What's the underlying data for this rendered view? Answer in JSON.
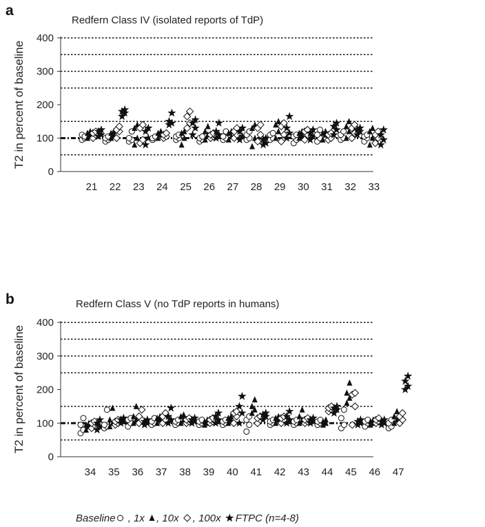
{
  "chart_data": [
    {
      "type": "scatter",
      "panel_label": "a",
      "title": "Redfern Class IV (isolated reports of  TdP)",
      "ylabel": "T2 in percent of baseline",
      "xlabel": "",
      "ylim": [
        0,
        400
      ],
      "yticks": [
        0,
        100,
        200,
        300,
        400
      ],
      "gridlines": [
        50,
        150,
        250,
        300,
        350,
        400
      ],
      "baseline": 100,
      "categories": [
        "21",
        "22",
        "23",
        "24",
        "25",
        "26",
        "27",
        "28",
        "29",
        "30",
        "31",
        "32",
        "33"
      ],
      "series": [
        {
          "name": "Baseline",
          "values": [
            [
              95,
              100,
              110,
              105
            ],
            [
              90,
              95,
              100,
              105
            ],
            [
              90,
              95,
              100,
              120
            ],
            [
              95,
              100,
              100,
              105
            ],
            [
              95,
              100,
              105,
              110
            ],
            [
              90,
              95,
              100,
              105
            ],
            [
              95,
              100,
              105,
              120
            ],
            [
              95,
              100,
              110,
              120
            ],
            [
              95,
              100,
              110,
              115
            ],
            [
              85,
              95,
              105,
              110
            ],
            [
              90,
              100,
              110,
              125
            ],
            [
              95,
              100,
              110,
              120
            ],
            [
              90,
              100,
              105,
              110
            ]
          ]
        },
        {
          "name": "1x",
          "values": [
            [
              100,
              110,
              115,
              120
            ],
            [
              100,
              110,
              115,
              120
            ],
            [
              80,
              100,
              130,
              140
            ],
            [
              100,
              110,
              115,
              120
            ],
            [
              80,
              100,
              115,
              120
            ],
            [
              95,
              110,
              120,
              135
            ],
            [
              95,
              105,
              115,
              120
            ],
            [
              75,
              100,
              130,
              140
            ],
            [
              100,
              120,
              140,
              150
            ],
            [
              100,
              110,
              115,
              120
            ],
            [
              95,
              110,
              115,
              120
            ],
            [
              100,
              120,
              135,
              150
            ],
            [
              80,
              100,
              120,
              130
            ]
          ]
        },
        {
          "name": "10x",
          "values": [
            [
              100,
              110,
              115,
              120
            ],
            [
              100,
              120,
              125,
              135
            ],
            [
              85,
              95,
              130,
              140
            ],
            [
              100,
              105,
              110,
              115
            ],
            [
              130,
              145,
              165,
              180
            ],
            [
              100,
              105,
              110,
              115
            ],
            [
              100,
              110,
              120,
              130
            ],
            [
              90,
              110,
              130,
              140
            ],
            [
              90,
              110,
              135,
              145
            ],
            [
              95,
              110,
              120,
              125
            ],
            [
              95,
              100,
              110,
              115
            ],
            [
              100,
              115,
              130,
              140
            ],
            [
              85,
              100,
              110,
              120
            ]
          ]
        },
        {
          "name": "100x",
          "values": [
            [
              105,
              110,
              120,
              125
            ],
            [
              165,
              175,
              180,
              185
            ],
            [
              80,
              100,
              120,
              130
            ],
            [
              140,
              145,
              150,
              175
            ],
            [
              110,
              130,
              145,
              155
            ],
            [
              100,
              110,
              120,
              145
            ],
            [
              95,
              105,
              120,
              130
            ],
            [
              80,
              85,
              95,
              100
            ],
            [
              100,
              115,
              130,
              165
            ],
            [
              95,
              105,
              115,
              125
            ],
            [
              110,
              125,
              135,
              145
            ],
            [
              110,
              120,
              125,
              130
            ],
            [
              80,
              95,
              110,
              125
            ]
          ]
        }
      ],
      "legend": "bottom"
    },
    {
      "type": "scatter",
      "panel_label": "b",
      "title": "Redfern Class V (no TdP reports in humans)",
      "ylabel": "T2 in percent of baseline",
      "xlabel": "",
      "ylim": [
        0,
        400
      ],
      "yticks": [
        0,
        100,
        200,
        300,
        400
      ],
      "gridlines": [
        50,
        150,
        250,
        300,
        350,
        400
      ],
      "baseline": 100,
      "categories": [
        "34",
        "35",
        "36",
        "37",
        "38",
        "39",
        "40",
        "41",
        "42",
        "43",
        "44",
        "45",
        "46",
        "47"
      ],
      "series": [
        {
          "name": "Baseline",
          "values": [
            [
              70,
              80,
              95,
              115
            ],
            [
              85,
              90,
              95,
              140
            ],
            [
              90,
              100,
              110,
              115
            ],
            [
              95,
              100,
              105,
              115
            ],
            [
              95,
              100,
              105,
              110
            ],
            [
              95,
              100,
              105,
              110
            ],
            [
              95,
              100,
              105,
              110
            ],
            [
              75,
              95,
              110,
              120
            ],
            [
              95,
              100,
              105,
              110
            ],
            [
              95,
              100,
              105,
              110
            ],
            [
              95,
              100,
              105,
              110
            ],
            [
              85,
              95,
              115,
              140
            ],
            [
              90,
              100,
              105,
              110
            ],
            [
              85,
              90,
              100,
              110
            ]
          ]
        },
        {
          "name": "1x",
          "values": [
            [
              80,
              90,
              95,
              100
            ],
            [
              90,
              100,
              110,
              145
            ],
            [
              100,
              110,
              120,
              150
            ],
            [
              100,
              110,
              115,
              120
            ],
            [
              100,
              110,
              120,
              125
            ],
            [
              95,
              100,
              105,
              110
            ],
            [
              100,
              110,
              115,
              120
            ],
            [
              130,
              140,
              150,
              170
            ],
            [
              100,
              110,
              115,
              120
            ],
            [
              100,
              110,
              120,
              140
            ],
            [
              95,
              100,
              105,
              110
            ],
            [
              160,
              175,
              190,
              220
            ],
            [
              95,
              100,
              105,
              110
            ],
            [
              100,
              110,
              120,
              135
            ]
          ]
        },
        {
          "name": "10x",
          "values": [
            [
              85,
              95,
              100,
              105
            ],
            [
              95,
              100,
              105,
              110
            ],
            [
              100,
              110,
              120,
              140
            ],
            [
              100,
              110,
              120,
              130
            ],
            [
              100,
              105,
              110,
              115
            ],
            [
              100,
              105,
              110,
              115
            ],
            [
              100,
              120,
              130,
              135
            ],
            [
              100,
              110,
              115,
              120
            ],
            [
              100,
              110,
              115,
              120
            ],
            [
              100,
              105,
              110,
              115
            ],
            [
              135,
              140,
              145,
              150
            ],
            [
              95,
              150,
              185,
              190
            ],
            [
              100,
              105,
              110,
              115
            ],
            [
              100,
              110,
              120,
              130
            ]
          ]
        },
        {
          "name": "100x",
          "values": [
            [
              80,
              90,
              100,
              110
            ],
            [
              100,
              105,
              110,
              115
            ],
            [
              95,
              100,
              105,
              110
            ],
            [
              100,
              110,
              120,
              145
            ],
            [
              100,
              105,
              110,
              115
            ],
            [
              100,
              110,
              120,
              130
            ],
            [
              100,
              130,
              150,
              180
            ],
            [
              110,
              120,
              125,
              130
            ],
            [
              100,
              110,
              120,
              135
            ],
            [
              100,
              105,
              110,
              115
            ],
            [
              130,
              140,
              145,
              150
            ],
            [
              95,
              100,
              105,
              110
            ],
            [
              95,
              100,
              105,
              110
            ],
            [
              200,
              210,
              225,
              240
            ]
          ]
        }
      ],
      "legend": "bottom"
    }
  ],
  "legend": {
    "label_baseline": "Baseline",
    "sep1": " , 1x ",
    "sep2": " , 10x ",
    "sep3": " , 100x ",
    "tail": "FTPC (n=4-8)"
  },
  "colors": {
    "marker": "#111111",
    "grid": "#111111"
  }
}
